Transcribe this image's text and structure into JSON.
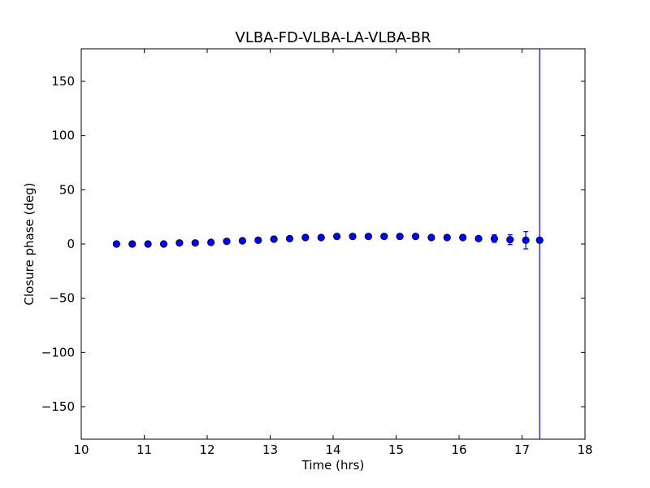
{
  "chart_data": {
    "type": "scatter",
    "title": "VLBA-FD-VLBA-LA-VLBA-BR",
    "xlabel": "Time (hrs)",
    "ylabel": "Closure phase (deg)",
    "xlim": [
      10,
      18
    ],
    "ylim": [
      -180,
      180
    ],
    "xticks": [
      10,
      11,
      12,
      13,
      14,
      15,
      16,
      17,
      18
    ],
    "xtick_labels": [
      "10",
      "11",
      "12",
      "13",
      "14",
      "15",
      "16",
      "17",
      "18"
    ],
    "yticks": [
      150,
      100,
      50,
      0,
      -50,
      -100,
      -150
    ],
    "ytick_labels": [
      "150",
      "100",
      "50",
      "0",
      "−50",
      "−100",
      "−150"
    ],
    "grid": false,
    "marker_color": "#0000ff",
    "errorbar_color": "#0000ff",
    "series": [
      {
        "x": [
          10.56,
          10.81,
          11.06,
          11.31,
          11.56,
          11.81,
          12.06,
          12.31,
          12.56,
          12.81,
          13.06,
          13.31,
          13.56,
          13.81,
          14.06,
          14.31,
          14.56,
          14.81,
          15.06,
          15.31,
          15.56,
          15.81,
          16.06,
          16.31,
          16.56,
          16.81,
          17.06,
          17.28
        ],
        "y": [
          0,
          0,
          0,
          0,
          1,
          1,
          1.5,
          2.5,
          3,
          3.5,
          4.5,
          5,
          6,
          6,
          7,
          7,
          7,
          7,
          7,
          7,
          6,
          6,
          6,
          5,
          5,
          4,
          3.5,
          3.5
        ],
        "yerr": [
          0,
          0,
          0,
          0,
          0,
          0,
          0,
          0,
          0,
          0,
          0,
          0,
          0,
          0,
          0,
          0,
          0,
          0,
          0,
          0,
          0,
          0,
          0,
          2,
          3.5,
          4.5,
          8,
          200
        ]
      }
    ]
  }
}
